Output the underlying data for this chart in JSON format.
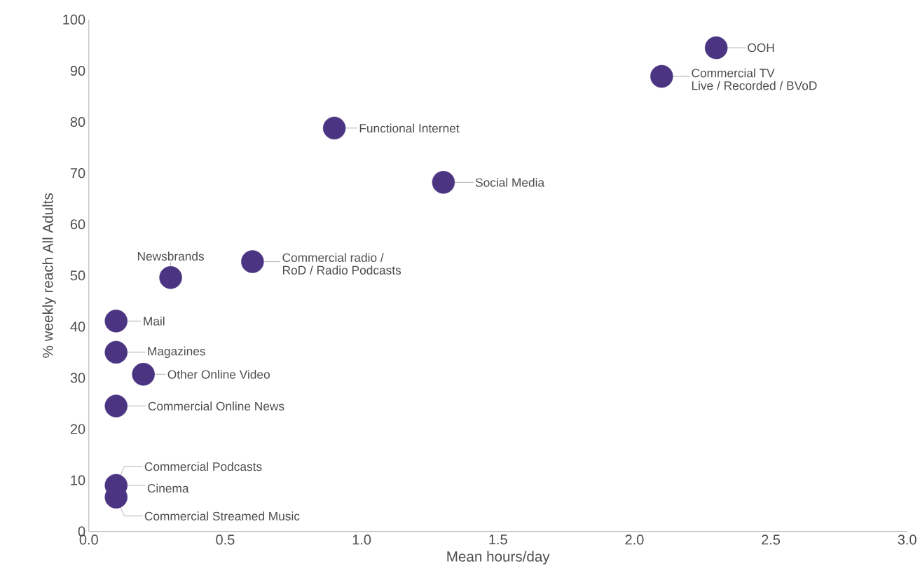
{
  "chart_data": {
    "type": "scatter",
    "xlabel": "Mean hours/day",
    "ylabel": "% weekly reach All Adults",
    "color": "#4b3482",
    "marker": "circle",
    "x": [
      2.3,
      2.1,
      0.9,
      1.3,
      0.6,
      0.3,
      0.1,
      0.1,
      0.2,
      0.1,
      null,
      0.1,
      0.1
    ],
    "values": [
      94.5,
      88.9,
      78.8,
      68.2,
      52.7,
      49.6,
      41.1,
      35.0,
      30.7,
      24.5,
      null,
      9.0,
      6.7
    ],
    "xlim": [
      0,
      3
    ],
    "ylim": [
      0,
      100
    ],
    "xticks": [
      {
        "value": 0,
        "label": "0.0"
      },
      {
        "value": 0.5,
        "label": "0.5"
      },
      {
        "value": 1,
        "label": "1.0"
      },
      {
        "value": 1.5,
        "label": "1.5"
      },
      {
        "value": 2,
        "label": "2.0"
      },
      {
        "value": 2.5,
        "label": "2.5"
      },
      {
        "value": 3,
        "label": "3.0"
      }
    ],
    "yticks": [
      0,
      10,
      20,
      30,
      40,
      50,
      60,
      70,
      80,
      90,
      100
    ],
    "annotations": [
      {
        "text": "OOH",
        "x": 2.3,
        "y": 94.5
      },
      {
        "text": "Commercial TV",
        "x": 2.1,
        "y": 88.9
      },
      {
        "text": "Live / Recorded / BVoD",
        "x": 2.1,
        "y": 88.9
      },
      {
        "text": "Functional Internet",
        "x": 0.9,
        "y": 78.8
      },
      {
        "text": "Social Media",
        "x": 1.3,
        "y": 68.2
      },
      {
        "text": "Commercial radio /",
        "x": 0.6,
        "y": 52.7
      },
      {
        "text": "RoD / Radio Podcasts",
        "x": 0.6,
        "y": 52.7
      },
      {
        "text": "Newsbrands",
        "x": 0.3,
        "y": 49.6
      },
      {
        "text": "Mail",
        "x": 0.1,
        "y": 41.1
      },
      {
        "text": "Magazines",
        "x": 0.1,
        "y": 35.0
      },
      {
        "text": "Other Online Video",
        "x": 0.2,
        "y": 30.7
      },
      {
        "text": "Commercial Online News",
        "x": 0.1,
        "y": 24.5
      },
      {
        "text": "Commercial Podcasts",
        "x": 0.1,
        "y": 9.0
      },
      {
        "text": "Cinema",
        "x": 0.1,
        "y": 9.0
      },
      {
        "text": "Commercial Streamed Music",
        "x": 0.1,
        "y": 6.7
      }
    ]
  }
}
